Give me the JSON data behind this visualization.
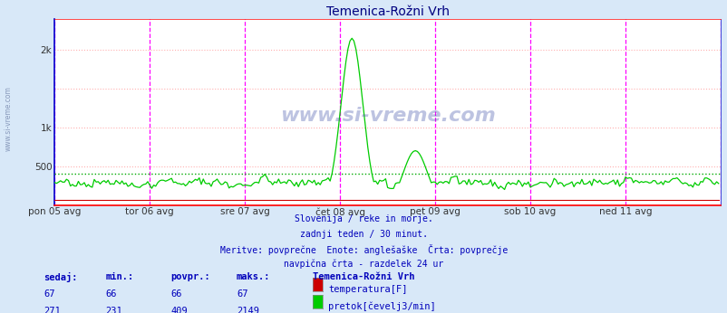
{
  "title": "Temenica-Rožni Vrh",
  "bg_color": "#d8e8f8",
  "plot_bg_color": "#ffffff",
  "title_color": "#000080",
  "grid_color": "#ffb0b0",
  "vline_color": "#ff00ff",
  "xaxis_color": "#ff0000",
  "yaxis_color": "#0000cc",
  "xlim": [
    0,
    336
  ],
  "ylim": [
    0,
    2400
  ],
  "num_points": 336,
  "flow_avg": 409,
  "flow_min": 231,
  "flow_max": 2149,
  "flow_color": "#00cc00",
  "temp_color": "#cc0000",
  "temp_value": 67,
  "avg_line_color": "#00aa00",
  "watermark": "www.si-vreme.com",
  "subtitle_lines": [
    "Slovenija / reke in morje.",
    "zadnji teden / 30 minut.",
    "Meritve: povprečne  Enote: anglešaške  Črta: povprečje",
    "navpična črta - razdelek 24 ur"
  ],
  "xtick_labels": [
    "pon 05 avg",
    "tor 06 avg",
    "sre 07 avg",
    "čet 08 avg",
    "pet 09 avg",
    "sob 10 avg",
    "ned 11 avg"
  ],
  "xtick_positions": [
    0,
    48,
    96,
    144,
    192,
    240,
    288
  ],
  "vline_positions": [
    0,
    48,
    96,
    144,
    192,
    240,
    288,
    336
  ],
  "yticks": [
    0,
    500,
    1000,
    1500,
    2000
  ],
  "ytick_labels": [
    "",
    "500",
    "1k",
    "",
    "2k"
  ],
  "legend_title": "Temenica-Rožni Vrh",
  "legend_entries": [
    {
      "label": "temperatura[F]",
      "color": "#cc0000"
    },
    {
      "label": "pretok[čevelj3/min]",
      "color": "#00cc00"
    }
  ],
  "stats": {
    "headers": [
      "sedaj:",
      "min.:",
      "povpr.:",
      "maks.:"
    ],
    "temp_row": [
      67,
      66,
      66,
      67
    ],
    "flow_row": [
      271,
      231,
      409,
      2149
    ]
  },
  "left_label": "www.si-vreme.com"
}
